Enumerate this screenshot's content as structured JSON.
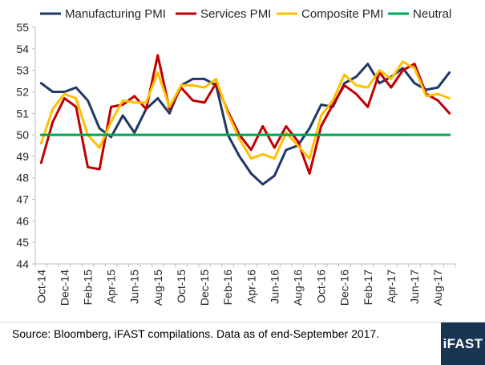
{
  "chart_data": {
    "type": "line",
    "title": "",
    "xlabel": "",
    "ylabel": "",
    "ylim": [
      44,
      55
    ],
    "ytick_step": 1,
    "grid": false,
    "legend_position": "top",
    "categories": [
      "Oct-14",
      "Nov-14",
      "Dec-14",
      "Jan-15",
      "Feb-15",
      "Mar-15",
      "Apr-15",
      "May-15",
      "Jun-15",
      "Jul-15",
      "Aug-15",
      "Sep-15",
      "Oct-15",
      "Nov-15",
      "Dec-15",
      "Jan-16",
      "Feb-16",
      "Mar-16",
      "Apr-16",
      "May-16",
      "Jun-16",
      "Jul-16",
      "Aug-16",
      "Sep-16",
      "Oct-16",
      "Nov-16",
      "Dec-16",
      "Jan-17",
      "Feb-17",
      "Mar-17",
      "Apr-17",
      "May-17",
      "Jun-17",
      "Jul-17",
      "Aug-17",
      "Sep-17"
    ],
    "x_tick_labels": [
      "Oct-14",
      "Dec-14",
      "Feb-15",
      "Apr-15",
      "Jun-15",
      "Aug-15",
      "Oct-15",
      "Dec-15",
      "Feb-16",
      "Apr-16",
      "Jun-16",
      "Aug-16",
      "Oct-16",
      "Dec-16",
      "Feb-17",
      "Apr-17",
      "Jun-17",
      "Aug-17"
    ],
    "series": [
      {
        "name": "Manufacturing PMI",
        "color": "#1f3864",
        "values": [
          52.4,
          52.0,
          52.0,
          52.2,
          51.6,
          50.3,
          49.9,
          50.9,
          50.1,
          51.2,
          51.7,
          51.0,
          52.3,
          52.6,
          52.6,
          52.3,
          50.0,
          49.0,
          48.2,
          47.7,
          48.1,
          49.3,
          49.5,
          50.3,
          51.4,
          51.3,
          52.4,
          52.7,
          53.3,
          52.4,
          52.7,
          53.1,
          52.4,
          52.1,
          52.2,
          52.9
        ]
      },
      {
        "name": "Services PMI",
        "color": "#c00000",
        "values": [
          48.7,
          50.6,
          51.7,
          51.3,
          48.5,
          48.4,
          51.3,
          51.4,
          51.8,
          51.2,
          53.7,
          51.2,
          52.2,
          51.6,
          51.5,
          52.4,
          51.1,
          50.0,
          49.3,
          50.4,
          49.4,
          50.4,
          49.7,
          48.2,
          50.4,
          51.4,
          52.3,
          51.9,
          51.3,
          52.9,
          52.2,
          53.0,
          53.3,
          51.9,
          51.6,
          51.0
        ]
      },
      {
        "name": "Composite PMI",
        "color": "#ffc000",
        "values": [
          49.6,
          51.2,
          51.9,
          51.7,
          50.0,
          49.4,
          50.6,
          51.6,
          51.5,
          51.5,
          52.9,
          51.3,
          52.3,
          52.3,
          52.2,
          52.6,
          51.0,
          49.8,
          48.9,
          49.1,
          48.9,
          50.1,
          49.5,
          48.9,
          50.9,
          51.6,
          52.8,
          52.3,
          52.2,
          53.0,
          52.6,
          53.4,
          53.1,
          51.8,
          51.9,
          51.7
        ]
      },
      {
        "name": "Neutral",
        "color": "#00a651",
        "values": [
          50,
          50,
          50,
          50,
          50,
          50,
          50,
          50,
          50,
          50,
          50,
          50,
          50,
          50,
          50,
          50,
          50,
          50,
          50,
          50,
          50,
          50,
          50,
          50,
          50,
          50,
          50,
          50,
          50,
          50,
          50,
          50,
          50,
          50,
          50,
          50
        ]
      }
    ]
  },
  "footer": {
    "source": "Source: Bloomberg, iFAST compilations. Data as of end-September 2017.",
    "logo_text": "iFAST",
    "logo_color": "#1a3553"
  }
}
